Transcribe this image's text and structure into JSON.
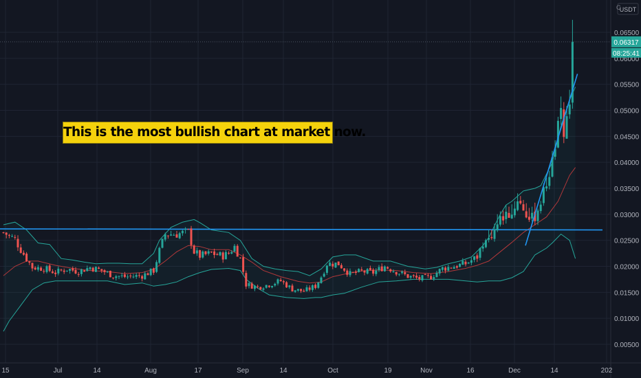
{
  "header": {
    "quote_currency": "USDT",
    "top_corner_glyph": "C"
  },
  "annotation": {
    "text": "This is the most bullish chart at market now."
  },
  "price_axis": {
    "labels": [
      "0.06500",
      "0.06000",
      "0.05500",
      "0.05000",
      "0.04500",
      "0.04000",
      "0.03500",
      "0.03000",
      "0.02500",
      "0.02000",
      "0.01500",
      "0.01000",
      "0.00500"
    ]
  },
  "time_axis": {
    "labels": [
      "15",
      "Jul",
      "14",
      "Aug",
      "17",
      "Sep",
      "14",
      "Oct",
      "19",
      "Nov",
      "16",
      "Dec",
      "14",
      "202"
    ]
  },
  "current_price": {
    "price": "0.06317",
    "countdown": "08:25:41"
  },
  "colors": {
    "background": "#131722",
    "grid": "#1f2433",
    "up": "#26a69a",
    "down": "#ef5350",
    "bollinger": "#26a69a",
    "basis": "#b2383a",
    "trendline": "#2196f3",
    "price_label": "#26a69a",
    "annotation": "#f5d20c"
  },
  "chart_data": {
    "type": "candlestick",
    "title": "",
    "quote": "USDT",
    "ylim": [
      0.002,
      0.068
    ],
    "y_ticks": [
      0.065,
      0.06,
      0.055,
      0.05,
      0.045,
      0.04,
      0.035,
      0.03,
      0.025,
      0.02,
      0.015,
      0.01,
      0.005
    ],
    "x_ticks": [
      "15",
      "Jul",
      "14",
      "Aug",
      "17",
      "Sep",
      "14",
      "Oct",
      "19",
      "Nov",
      "16",
      "Dec",
      "14",
      "202"
    ],
    "last_price": 0.06317,
    "horizontal_line": {
      "price": 0.0272
    },
    "trendline": {
      "from": {
        "day": 180,
        "price": 0.024
      },
      "to": {
        "day": 198,
        "price": 0.057
      }
    },
    "close_path": [
      [
        0,
        0.0265
      ],
      [
        4,
        0.0252
      ],
      [
        6,
        0.0232
      ],
      [
        10,
        0.0198
      ],
      [
        14,
        0.0196
      ],
      [
        18,
        0.0188
      ],
      [
        22,
        0.0195
      ],
      [
        26,
        0.019
      ],
      [
        30,
        0.0198
      ],
      [
        34,
        0.0192
      ],
      [
        38,
        0.0182
      ],
      [
        42,
        0.018
      ],
      [
        48,
        0.0182
      ],
      [
        52,
        0.0192
      ],
      [
        54,
        0.023
      ],
      [
        56,
        0.0262
      ],
      [
        60,
        0.0262
      ],
      [
        64,
        0.0266
      ],
      [
        66,
        0.0228
      ],
      [
        68,
        0.022
      ],
      [
        72,
        0.0225
      ],
      [
        76,
        0.022
      ],
      [
        78,
        0.0225
      ],
      [
        80,
        0.0238
      ],
      [
        82,
        0.0215
      ],
      [
        84,
        0.0165
      ],
      [
        88,
        0.016
      ],
      [
        92,
        0.0165
      ],
      [
        96,
        0.0172
      ],
      [
        100,
        0.0156
      ],
      [
        104,
        0.0152
      ],
      [
        108,
        0.0162
      ],
      [
        110,
        0.018
      ],
      [
        112,
        0.0205
      ],
      [
        116,
        0.0205
      ],
      [
        120,
        0.0185
      ],
      [
        124,
        0.019
      ],
      [
        128,
        0.0188
      ],
      [
        132,
        0.02
      ],
      [
        136,
        0.019
      ],
      [
        140,
        0.0181
      ],
      [
        144,
        0.0176
      ],
      [
        148,
        0.018
      ],
      [
        152,
        0.0196
      ],
      [
        156,
        0.02
      ],
      [
        160,
        0.0205
      ],
      [
        164,
        0.0218
      ],
      [
        166,
        0.0246
      ],
      [
        168,
        0.0252
      ],
      [
        170,
        0.027
      ],
      [
        172,
        0.029
      ],
      [
        174,
        0.03
      ],
      [
        176,
        0.03
      ],
      [
        178,
        0.033
      ],
      [
        180,
        0.031
      ],
      [
        182,
        0.029
      ],
      [
        184,
        0.0296
      ],
      [
        186,
        0.0325
      ],
      [
        188,
        0.036
      ],
      [
        190,
        0.04
      ],
      [
        192,
        0.0465
      ],
      [
        193,
        0.049
      ],
      [
        194,
        0.045
      ],
      [
        196,
        0.052
      ],
      [
        197,
        0.0635
      ]
    ],
    "bollinger_upper_path": [
      [
        0,
        0.028
      ],
      [
        4,
        0.0285
      ],
      [
        8,
        0.027
      ],
      [
        12,
        0.0245
      ],
      [
        16,
        0.0242
      ],
      [
        20,
        0.0215
      ],
      [
        24,
        0.0212
      ],
      [
        28,
        0.0208
      ],
      [
        32,
        0.0205
      ],
      [
        36,
        0.0206
      ],
      [
        40,
        0.0206
      ],
      [
        44,
        0.0205
      ],
      [
        48,
        0.0205
      ],
      [
        52,
        0.0225
      ],
      [
        54,
        0.025
      ],
      [
        58,
        0.0275
      ],
      [
        62,
        0.0285
      ],
      [
        66,
        0.029
      ],
      [
        68,
        0.0284
      ],
      [
        72,
        0.027
      ],
      [
        78,
        0.0265
      ],
      [
        82,
        0.025
      ],
      [
        86,
        0.0215
      ],
      [
        90,
        0.02
      ],
      [
        94,
        0.0195
      ],
      [
        98,
        0.0192
      ],
      [
        102,
        0.019
      ],
      [
        106,
        0.0182
      ],
      [
        110,
        0.0195
      ],
      [
        114,
        0.0218
      ],
      [
        118,
        0.0222
      ],
      [
        122,
        0.0222
      ],
      [
        128,
        0.021
      ],
      [
        134,
        0.021
      ],
      [
        140,
        0.02
      ],
      [
        146,
        0.0195
      ],
      [
        150,
        0.0198
      ],
      [
        154,
        0.0205
      ],
      [
        158,
        0.021
      ],
      [
        162,
        0.0218
      ],
      [
        166,
        0.024
      ],
      [
        168,
        0.0255
      ],
      [
        170,
        0.0278
      ],
      [
        172,
        0.03
      ],
      [
        174,
        0.0318
      ],
      [
        176,
        0.0325
      ],
      [
        178,
        0.0335
      ],
      [
        180,
        0.0345
      ],
      [
        184,
        0.035
      ],
      [
        186,
        0.0355
      ],
      [
        190,
        0.04
      ],
      [
        193,
        0.047
      ],
      [
        196,
        0.052
      ],
      [
        198,
        0.0545
      ]
    ],
    "bollinger_basis_path": [
      [
        0,
        0.0182
      ],
      [
        4,
        0.02
      ],
      [
        8,
        0.021
      ],
      [
        12,
        0.021
      ],
      [
        18,
        0.0202
      ],
      [
        24,
        0.0196
      ],
      [
        30,
        0.0192
      ],
      [
        36,
        0.019
      ],
      [
        42,
        0.0186
      ],
      [
        48,
        0.0188
      ],
      [
        52,
        0.0194
      ],
      [
        56,
        0.021
      ],
      [
        60,
        0.0228
      ],
      [
        64,
        0.024
      ],
      [
        68,
        0.0238
      ],
      [
        72,
        0.0232
      ],
      [
        78,
        0.0232
      ],
      [
        82,
        0.0222
      ],
      [
        86,
        0.0208
      ],
      [
        90,
        0.0192
      ],
      [
        96,
        0.018
      ],
      [
        102,
        0.0171
      ],
      [
        106,
        0.0168
      ],
      [
        110,
        0.017
      ],
      [
        114,
        0.018
      ],
      [
        118,
        0.0185
      ],
      [
        124,
        0.0191
      ],
      [
        130,
        0.0193
      ],
      [
        136,
        0.0192
      ],
      [
        142,
        0.0188
      ],
      [
        148,
        0.0186
      ],
      [
        154,
        0.019
      ],
      [
        160,
        0.0196
      ],
      [
        164,
        0.0202
      ],
      [
        168,
        0.021
      ],
      [
        172,
        0.0228
      ],
      [
        176,
        0.0246
      ],
      [
        180,
        0.0265
      ],
      [
        184,
        0.028
      ],
      [
        188,
        0.0295
      ],
      [
        192,
        0.0325
      ],
      [
        196,
        0.0375
      ],
      [
        198,
        0.039
      ]
    ],
    "bollinger_lower_path": [
      [
        0,
        0.0075
      ],
      [
        2,
        0.0095
      ],
      [
        6,
        0.0125
      ],
      [
        10,
        0.0155
      ],
      [
        14,
        0.0168
      ],
      [
        18,
        0.0172
      ],
      [
        24,
        0.0172
      ],
      [
        30,
        0.0172
      ],
      [
        36,
        0.0172
      ],
      [
        42,
        0.0165
      ],
      [
        48,
        0.0168
      ],
      [
        52,
        0.0162
      ],
      [
        56,
        0.0165
      ],
      [
        60,
        0.017
      ],
      [
        64,
        0.018
      ],
      [
        68,
        0.0188
      ],
      [
        72,
        0.0194
      ],
      [
        78,
        0.0196
      ],
      [
        82,
        0.0192
      ],
      [
        84,
        0.0175
      ],
      [
        88,
        0.0158
      ],
      [
        92,
        0.0145
      ],
      [
        98,
        0.014
      ],
      [
        104,
        0.0138
      ],
      [
        108,
        0.014
      ],
      [
        110,
        0.014
      ],
      [
        114,
        0.0145
      ],
      [
        118,
        0.0148
      ],
      [
        124,
        0.016
      ],
      [
        130,
        0.017
      ],
      [
        136,
        0.0172
      ],
      [
        142,
        0.0175
      ],
      [
        148,
        0.0175
      ],
      [
        154,
        0.0175
      ],
      [
        160,
        0.0172
      ],
      [
        164,
        0.017
      ],
      [
        168,
        0.0172
      ],
      [
        172,
        0.0172
      ],
      [
        176,
        0.0178
      ],
      [
        180,
        0.019
      ],
      [
        184,
        0.0222
      ],
      [
        188,
        0.0235
      ],
      [
        190,
        0.0245
      ],
      [
        193,
        0.0262
      ],
      [
        196,
        0.025
      ],
      [
        198,
        0.0215
      ]
    ]
  }
}
